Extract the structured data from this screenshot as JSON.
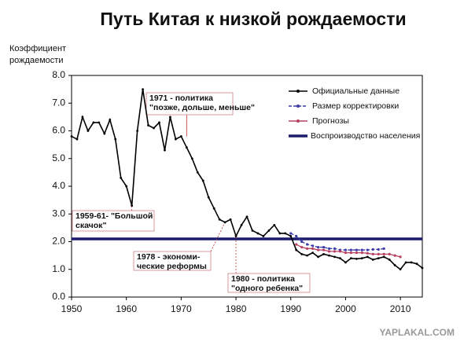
{
  "chart_data": {
    "type": "line",
    "title": "Путь Китая к низкой рождаемости",
    "ylabel": [
      "Коэффициент",
      "рождаемости"
    ],
    "x": [
      1950,
      1951,
      1952,
      1953,
      1954,
      1955,
      1956,
      1957,
      1958,
      1959,
      1960,
      1961,
      1962,
      1963,
      1964,
      1965,
      1966,
      1967,
      1968,
      1969,
      1970,
      1971,
      1972,
      1973,
      1974,
      1975,
      1976,
      1977,
      1978,
      1979,
      1980,
      1981,
      1982,
      1983,
      1984,
      1985,
      1986,
      1987,
      1988,
      1989,
      1990,
      1991,
      1992,
      1993,
      1994,
      1995,
      1996,
      1997,
      1998,
      1999,
      2000,
      2001,
      2002,
      2003,
      2004,
      2005,
      2006,
      2007,
      2008,
      2009,
      2010,
      2011,
      2012,
      2013,
      2014
    ],
    "series": [
      {
        "name": "Официальные данные",
        "color": "#000000",
        "style": "solid",
        "values": [
          5.8,
          5.7,
          6.5,
          6.0,
          6.3,
          6.3,
          5.9,
          6.4,
          5.7,
          4.3,
          4.0,
          3.3,
          6.0,
          7.5,
          6.2,
          6.1,
          6.3,
          5.3,
          6.5,
          5.7,
          5.8,
          5.4,
          5.0,
          4.5,
          4.2,
          3.6,
          3.2,
          2.8,
          2.7,
          2.8,
          2.2,
          2.6,
          2.9,
          2.4,
          2.3,
          2.2,
          2.4,
          2.6,
          2.3,
          2.3,
          2.2,
          1.7,
          1.55,
          1.5,
          1.6,
          1.45,
          1.55,
          1.5,
          1.45,
          1.4,
          1.25,
          1.4,
          1.38,
          1.4,
          1.45,
          1.35,
          1.4,
          1.45,
          1.35,
          1.15,
          1.0,
          1.25,
          1.25,
          1.2,
          1.05
        ]
      },
      {
        "name": "Размер корректировки",
        "color": "#3a3aa8",
        "style": "dashed",
        "values": [
          null,
          null,
          null,
          null,
          null,
          null,
          null,
          null,
          null,
          null,
          null,
          null,
          null,
          null,
          null,
          null,
          null,
          null,
          null,
          null,
          null,
          null,
          null,
          null,
          null,
          null,
          null,
          null,
          null,
          null,
          null,
          null,
          null,
          null,
          null,
          null,
          null,
          null,
          null,
          null,
          2.3,
          2.2,
          2.0,
          1.9,
          1.85,
          1.8,
          1.8,
          1.75,
          1.75,
          1.7,
          1.7,
          1.7,
          1.7,
          1.7,
          1.7,
          1.72,
          1.72,
          1.75,
          null,
          null,
          null,
          null,
          null,
          null,
          null
        ]
      },
      {
        "name": "Прогнозы",
        "color": "#b84060",
        "style": "solid",
        "values": [
          null,
          null,
          null,
          null,
          null,
          null,
          null,
          null,
          null,
          null,
          null,
          null,
          null,
          null,
          null,
          null,
          null,
          null,
          null,
          null,
          null,
          null,
          null,
          null,
          null,
          null,
          null,
          null,
          null,
          null,
          null,
          null,
          null,
          null,
          null,
          null,
          null,
          null,
          null,
          null,
          null,
          1.9,
          1.8,
          1.75,
          1.75,
          1.7,
          1.7,
          1.65,
          1.65,
          1.65,
          1.6,
          1.6,
          1.6,
          1.6,
          1.58,
          1.55,
          1.55,
          1.55,
          1.55,
          1.5,
          1.45,
          null,
          null,
          null,
          null
        ]
      }
    ],
    "reference_line": {
      "name": "Воспроизводство населения",
      "color": "#1a1a6e",
      "value": 2.1
    },
    "xlim": [
      1950,
      2014
    ],
    "ylim": [
      0,
      8
    ],
    "xticks": [
      1950,
      1960,
      1970,
      1980,
      1990,
      2000,
      2010
    ],
    "yticks": [
      {
        "value": 0,
        "label": "0.0"
      },
      {
        "value": 1,
        "label": "1.0"
      },
      {
        "value": 2,
        "label": "2.0"
      },
      {
        "value": 3,
        "label": "3.0"
      },
      {
        "value": 4,
        "label": "4.0"
      },
      {
        "value": 5,
        "label": "5.0"
      },
      {
        "value": 6,
        "label": "6.0"
      },
      {
        "value": 7,
        "label": "7.0"
      },
      {
        "value": 8,
        "label": "8.0"
      }
    ],
    "annotations": [
      {
        "text": [
          "1971 - политика",
          "\"позже, дольше, меньше\""
        ],
        "x": 1971,
        "y": 5.8
      },
      {
        "text": [
          "1959-61- \"Большой",
          "скачок\""
        ],
        "x": 1961,
        "y": 3.3
      },
      {
        "text": [
          "1978 - экономи-",
          "ческие реформы"
        ],
        "x": 1978,
        "y": 2.7
      },
      {
        "text": [
          "1980 - политика",
          "\"одного ребенка\""
        ],
        "x": 1980,
        "y": 2.2
      }
    ],
    "watermark": "YAPLAKAL.COM"
  }
}
